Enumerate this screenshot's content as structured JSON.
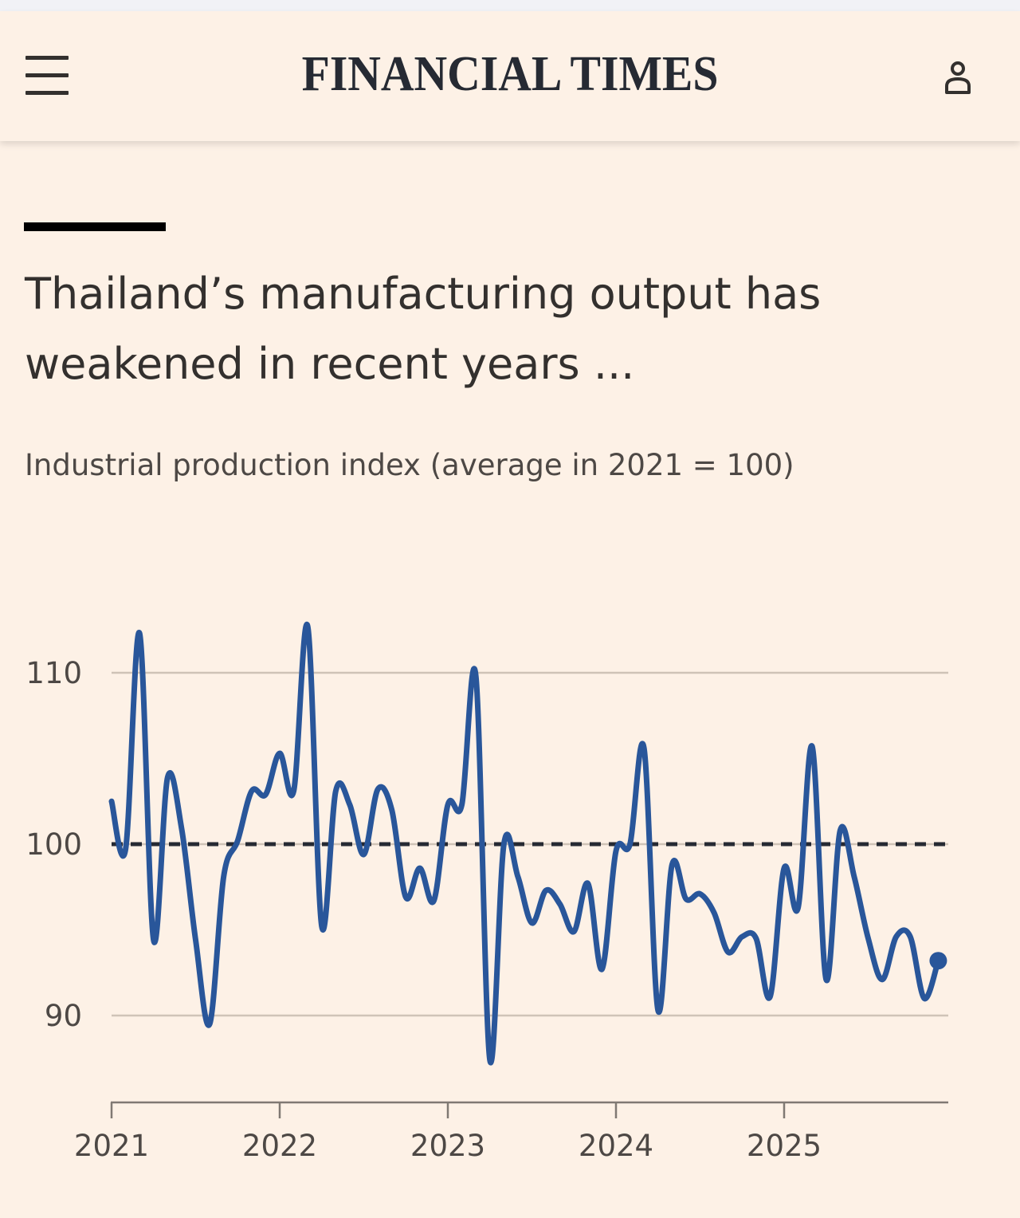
{
  "header": {
    "logo": "FINANCIAL TIMES",
    "menu_icon": "hamburger-menu-icon",
    "user_icon": "user-icon"
  },
  "article": {
    "title": "Thailand’s manufacturing output has weakened in recent years ...",
    "subtitle": "Industrial production index (average in 2021 = 100)"
  },
  "colors": {
    "background": "#fdf1e6",
    "line": "#29569a",
    "grid": "#cfc3b7",
    "reference": "#262a33"
  },
  "chart_data": {
    "type": "line",
    "title": "Thailand’s manufacturing output has weakened in recent years ...",
    "subtitle": "Industrial production index (average in 2021 = 100)",
    "xlabel": "",
    "ylabel": "",
    "x_ticks": [
      "2021",
      "2022",
      "2023",
      "2024",
      "2025"
    ],
    "y_ticks": [
      90,
      100,
      110
    ],
    "ylim": [
      85,
      114
    ],
    "xlim": [
      "2021-01",
      "2025-12"
    ],
    "grid": true,
    "reference_line": {
      "value": 100,
      "style": "dashed"
    },
    "x": [
      "2021-01",
      "2021-02",
      "2021-03",
      "2021-04",
      "2021-05",
      "2021-06",
      "2021-07",
      "2021-08",
      "2021-09",
      "2021-10",
      "2021-11",
      "2021-12",
      "2022-01",
      "2022-02",
      "2022-03",
      "2022-04",
      "2022-05",
      "2022-06",
      "2022-07",
      "2022-08",
      "2022-09",
      "2022-10",
      "2022-11",
      "2022-12",
      "2023-01",
      "2023-02",
      "2023-03",
      "2023-04",
      "2023-05",
      "2023-06",
      "2023-07",
      "2023-08",
      "2023-09",
      "2023-10",
      "2023-11",
      "2023-12",
      "2024-01",
      "2024-02",
      "2024-03",
      "2024-04",
      "2024-05",
      "2024-06",
      "2024-07",
      "2024-08",
      "2024-09",
      "2024-10",
      "2024-11",
      "2024-12",
      "2025-01",
      "2025-02",
      "2025-03",
      "2025-04",
      "2025-05",
      "2025-06",
      "2025-07",
      "2025-08",
      "2025-09",
      "2025-10",
      "2025-11",
      "2025-12"
    ],
    "series": [
      {
        "values": [
          102.5,
          99.7,
          112.3,
          94.4,
          103.9,
          100.9,
          94.4,
          89.5,
          98.1,
          100.2,
          103.1,
          102.9,
          105.3,
          103.1,
          112.7,
          95.2,
          103.1,
          102.3,
          99.4,
          103.2,
          102.0,
          96.9,
          98.6,
          96.7,
          102.3,
          102.3,
          109.8,
          87.4,
          100.0,
          98.1,
          95.4,
          97.3,
          96.5,
          94.9,
          97.7,
          92.7,
          99.6,
          100.0,
          105.6,
          90.3,
          98.8,
          96.8,
          97.1,
          96.0,
          93.7,
          94.6,
          94.5,
          91.1,
          98.6,
          96.3,
          105.7,
          92.1,
          100.8,
          98.1,
          94.5,
          92.1,
          94.6,
          94.6,
          91.0,
          93.2
        ]
      }
    ]
  }
}
